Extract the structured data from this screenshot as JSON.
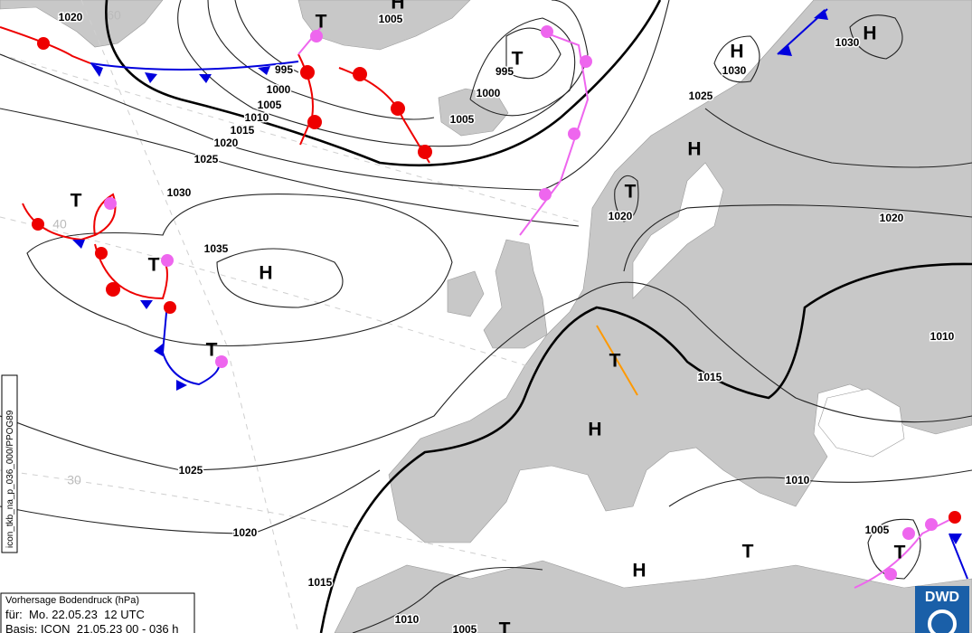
{
  "isobar_labels": [
    "1020",
    "1005",
    "995",
    "1000",
    "1005",
    "1010",
    "1015",
    "1020",
    "1025",
    "995",
    "1000",
    "1005",
    "1030",
    "1030",
    "1025",
    "1020",
    "1020",
    "1030",
    "1035",
    "1010",
    "1015",
    "1025",
    "1010",
    "1020",
    "1005",
    "1015",
    "1010",
    "1005"
  ],
  "pressure_centers": [
    "H",
    "T",
    "H",
    "H",
    "T",
    "H",
    "T",
    "T",
    "T",
    "H",
    "T",
    "T",
    "H",
    "T",
    "T",
    "H",
    "T"
  ],
  "grid_labels": [
    "60",
    "40",
    "30"
  ],
  "info_box": {
    "title": "Vorhersage Bodendruck (hPa)",
    "valid": "für:  Mo. 22.05.23  12 UTC",
    "base": "Basis: ICON  21.05.23 00 - 036 h"
  },
  "side_label": "icon_tkb_na_p_036_000/PPOG89",
  "logo": "DWD"
}
